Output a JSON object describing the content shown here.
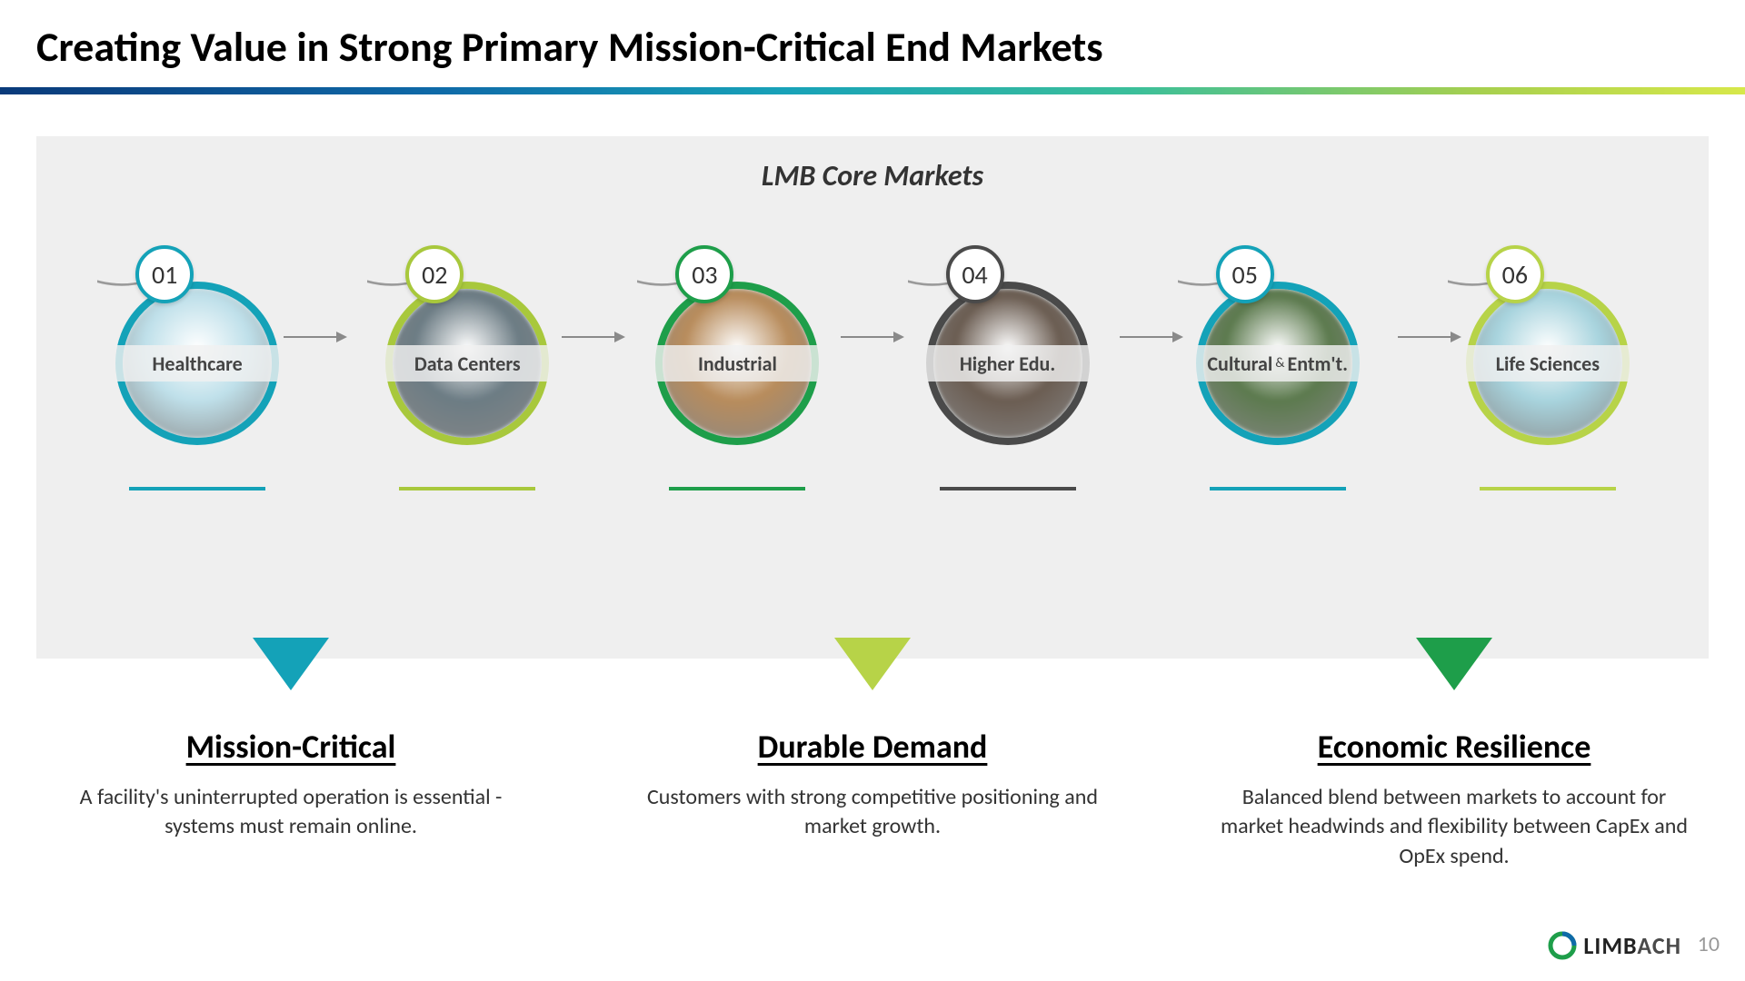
{
  "slide": {
    "title": "Creating Value in Strong Primary Mission-Critical End Markets",
    "title_bar_gradient": [
      "#0a3a7a",
      "#0f6aa8",
      "#18a2b8",
      "#3bbf9a",
      "#a8d04e",
      "#d7e84a"
    ],
    "panel": {
      "bg": "#efefef",
      "title": "LMB Core Markets"
    },
    "markets": [
      {
        "num": "01",
        "label": "Healthcare",
        "ring_color": "#14a2b8",
        "underline_color": "#14a2b8",
        "img_tint": "#bfe0ea"
      },
      {
        "num": "02",
        "label": "Data Centers",
        "ring_color": "#a8c83c",
        "underline_color": "#a8c83c",
        "img_tint": "#6c7c84"
      },
      {
        "num": "03",
        "label": "Industrial",
        "ring_color": "#1e9e4a",
        "underline_color": "#1e9e4a",
        "img_tint": "#b88c5c"
      },
      {
        "num": "04",
        "label": "Higher Edu.",
        "ring_color": "#4a4a4a",
        "underline_color": "#4a4a4a",
        "img_tint": "#6b5d52"
      },
      {
        "num": "05",
        "label_html": "Cultural <span class='small'>&amp;</span> Entm't.",
        "label": "Cultural & Entm't.",
        "ring_color": "#14a2b8",
        "underline_color": "#14a2b8",
        "img_tint": "#5c7a4e"
      },
      {
        "num": "06",
        "label": "Life Sciences",
        "ring_color": "#b7d348",
        "underline_color": "#b7d348",
        "img_tint": "#a8d4de"
      }
    ],
    "arrow_color": "#8a8a8a",
    "outer_arc_color": "#9a9a9a",
    "pillars": [
      {
        "title": "Mission-Critical",
        "tri_color": "#14a2b8",
        "body": "A facility's uninterrupted operation is essential - systems must remain online."
      },
      {
        "title": "Durable Demand",
        "tri_color": "#b7d348",
        "body": "Customers with strong competitive positioning and market growth."
      },
      {
        "title": "Economic Resilience",
        "tri_color": "#1e9e4a",
        "body": "Balanced blend between markets to account for market headwinds and flexibility between CapEx and OpEx spend."
      }
    ],
    "footer": {
      "logo_text_bold": "LIMB",
      "logo_text_light": "ACH",
      "logo_ring_outer": "#1e9e4a",
      "logo_ring_inner": "#0f6aa8",
      "page_number": "10"
    }
  }
}
